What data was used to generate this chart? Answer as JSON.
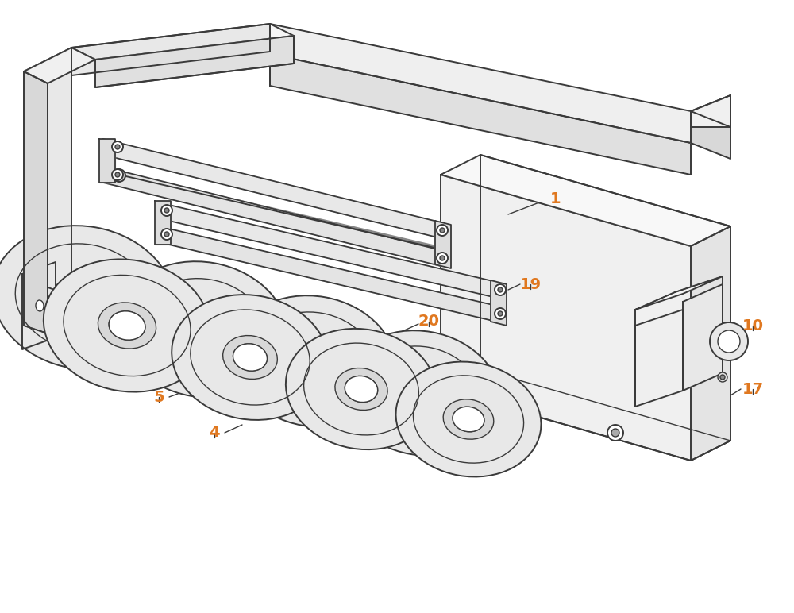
{
  "bg_color": "#ffffff",
  "line_color": "#3a3a3a",
  "label_color": "#e07820",
  "fig_width": 10.0,
  "fig_height": 7.72,
  "lw": 1.4,
  "lw2": 1.0
}
